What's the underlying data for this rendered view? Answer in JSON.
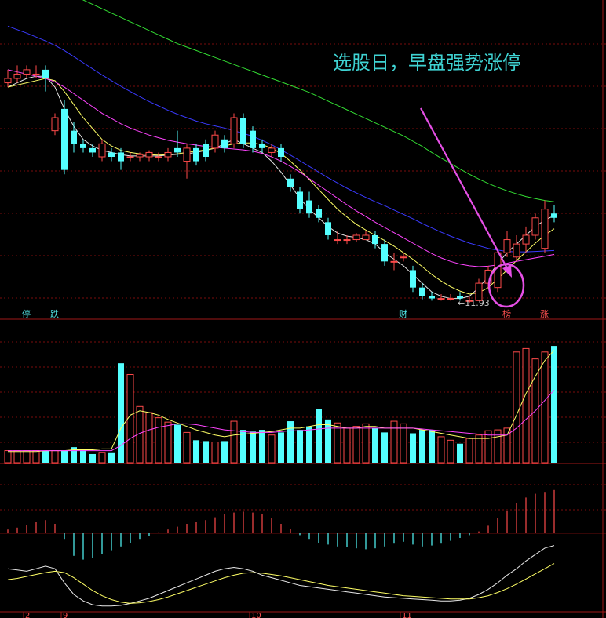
{
  "annotation": {
    "text": "选股日，早盘强势涨停",
    "color": "#3fd3d3"
  },
  "price_label": "←11.93",
  "events": [
    {
      "i": 2,
      "text": "停",
      "color": "#4fe0e0"
    },
    {
      "i": 5,
      "text": "跌",
      "color": "#4fe0e0"
    },
    {
      "i": 42,
      "text": "财",
      "color": "#4fe0e0"
    },
    {
      "i": 53,
      "text": "榜",
      "color": "#ff5050"
    },
    {
      "i": 57,
      "text": "涨",
      "color": "#ff5050"
    }
  ],
  "month_labels": [
    {
      "i": 2,
      "text": "2"
    },
    {
      "i": 6,
      "text": "9"
    },
    {
      "i": 26,
      "text": "10"
    },
    {
      "i": 42,
      "text": "11"
    }
  ],
  "colors": {
    "up": "#ff4a4a",
    "down": "#54ffff",
    "grid": "#7a0d0d",
    "ma_white": "#e8e8e8",
    "ma_yellow": "#ffff66",
    "ma_magenta": "#ff44ff",
    "ma_blue": "#3a3aff",
    "ma_green": "#33dd33",
    "arrow": "#e64fe6"
  },
  "chart_data": [
    {
      "type": "candlestick",
      "panel": "price",
      "x": [
        "d1",
        "d2",
        "d3",
        "d4",
        "d5",
        "d6",
        "d7",
        "d8",
        "d9",
        "d10",
        "d11",
        "d12",
        "d13",
        "d14",
        "d15",
        "d16",
        "d17",
        "d18",
        "d19",
        "d20",
        "d21",
        "d22",
        "d23",
        "d24",
        "d25",
        "d26",
        "d27",
        "d28",
        "d29",
        "d30",
        "d31",
        "d32",
        "d33",
        "d34",
        "d35",
        "d36",
        "d37",
        "d38",
        "d39",
        "d40",
        "d41",
        "d42",
        "d43",
        "d44",
        "d45",
        "d46",
        "d47",
        "d48",
        "d49",
        "d50",
        "d51",
        "d52",
        "d53",
        "d54",
        "d55",
        "d56",
        "d57",
        "d58",
        "d59"
      ],
      "open": [
        16.9,
        17.0,
        17.1,
        17.1,
        17.2,
        15.8,
        16.3,
        15.8,
        15.5,
        15.4,
        15.2,
        15.3,
        15.3,
        15.2,
        15.2,
        15.2,
        15.2,
        15.2,
        15.4,
        15.1,
        15.4,
        15.5,
        15.4,
        15.6,
        15.5,
        16.1,
        15.8,
        15.5,
        15.3,
        15.4,
        14.7,
        14.4,
        14.2,
        14.0,
        13.7,
        13.3,
        13.3,
        13.3,
        13.3,
        13.4,
        13.2,
        12.8,
        12.9,
        12.6,
        12.2,
        12.0,
        11.95,
        11.95,
        12.0,
        11.9,
        11.9,
        12.3,
        12.2,
        13.0,
        12.9,
        13.2,
        13.4,
        13.1,
        13.9
      ],
      "close": [
        17.0,
        17.1,
        17.2,
        17.1,
        17.0,
        16.1,
        14.9,
        15.5,
        15.4,
        15.3,
        15.5,
        15.2,
        15.1,
        15.2,
        15.25,
        15.3,
        15.2,
        15.3,
        15.3,
        15.4,
        15.1,
        15.2,
        15.7,
        15.4,
        16.1,
        15.5,
        15.4,
        15.4,
        15.4,
        15.2,
        14.5,
        14.0,
        13.9,
        13.8,
        13.4,
        13.3,
        13.3,
        13.4,
        13.4,
        13.2,
        12.8,
        12.8,
        12.9,
        12.2,
        12.0,
        11.95,
        11.95,
        11.95,
        11.95,
        11.9,
        12.3,
        12.6,
        13.0,
        13.3,
        13.2,
        13.4,
        13.8,
        14.0,
        13.8
      ],
      "high": [
        17.2,
        17.3,
        17.3,
        17.3,
        17.3,
        16.2,
        16.5,
        16.0,
        15.6,
        15.5,
        15.6,
        15.4,
        15.4,
        15.3,
        15.3,
        15.35,
        15.3,
        15.4,
        15.8,
        15.5,
        15.5,
        15.6,
        15.8,
        15.7,
        16.2,
        16.2,
        15.9,
        15.6,
        15.5,
        15.5,
        14.8,
        14.5,
        14.4,
        14.1,
        13.8,
        13.5,
        13.4,
        13.45,
        13.5,
        13.5,
        13.3,
        13.0,
        13.0,
        12.7,
        12.3,
        12.1,
        12.05,
        12.05,
        12.1,
        12.0,
        12.4,
        12.7,
        13.1,
        13.5,
        13.4,
        13.6,
        13.9,
        14.2,
        14.1
      ],
      "low": [
        16.8,
        16.9,
        17.0,
        17.0,
        16.7,
        15.7,
        14.8,
        15.3,
        15.3,
        15.2,
        15.1,
        15.1,
        14.9,
        15.1,
        15.1,
        15.1,
        15.1,
        15.1,
        15.2,
        14.7,
        15.0,
        15.1,
        15.3,
        15.3,
        15.4,
        15.4,
        15.3,
        15.3,
        15.2,
        15.1,
        14.4,
        13.9,
        13.8,
        13.7,
        13.3,
        13.2,
        13.2,
        13.25,
        13.3,
        13.1,
        12.7,
        12.6,
        12.8,
        12.1,
        11.93,
        11.9,
        11.9,
        11.9,
        11.9,
        11.85,
        11.9,
        12.2,
        12.1,
        12.9,
        12.8,
        13.0,
        13.3,
        13.0,
        13.7
      ],
      "ylim": [
        11.6,
        18.8
      ]
    },
    {
      "type": "line",
      "panel": "price",
      "series": [
        {
          "name": "",
          "color": "white",
          "values": [
            16.8,
            16.9,
            17.0,
            17.05,
            17.05,
            16.8,
            16.3,
            15.9,
            15.6,
            15.45,
            15.35,
            15.3,
            15.25,
            15.22,
            15.22,
            15.22,
            15.22,
            15.24,
            15.26,
            15.27,
            15.3,
            15.35,
            15.4,
            15.5,
            15.6,
            15.5,
            15.4,
            15.3,
            15.1,
            14.85,
            14.55,
            14.25,
            14.0,
            13.8,
            13.6,
            13.45,
            13.38,
            13.35,
            13.3,
            13.2,
            13.0,
            12.85,
            12.7,
            12.5,
            12.3,
            12.1,
            12.0,
            11.95,
            11.95,
            12.0,
            12.2,
            12.45,
            12.75,
            13.0,
            13.2,
            13.4,
            13.6,
            13.75,
            13.85
          ]
        },
        {
          "name": "",
          "color": "yellow",
          "values": [
            16.8,
            16.85,
            16.9,
            16.95,
            17.0,
            16.95,
            16.7,
            16.4,
            16.1,
            15.85,
            15.6,
            15.45,
            15.35,
            15.3,
            15.27,
            15.25,
            15.24,
            15.25,
            15.27,
            15.3,
            15.33,
            15.36,
            15.4,
            15.45,
            15.5,
            15.52,
            15.52,
            15.48,
            15.4,
            15.28,
            15.1,
            14.9,
            14.68,
            14.45,
            14.22,
            14.0,
            13.82,
            13.65,
            13.52,
            13.4,
            13.28,
            13.15,
            13.0,
            12.85,
            12.68,
            12.5,
            12.35,
            12.22,
            12.12,
            12.05,
            12.08,
            12.2,
            12.4,
            12.6,
            12.82,
            13.02,
            13.22,
            13.4,
            13.55
          ]
        },
        {
          "name": "",
          "color": "magenta",
          "values": [
            17.2,
            17.15,
            17.1,
            17.05,
            17.0,
            16.92,
            16.8,
            16.65,
            16.5,
            16.35,
            16.2,
            16.08,
            15.96,
            15.86,
            15.78,
            15.7,
            15.64,
            15.58,
            15.54,
            15.5,
            15.47,
            15.44,
            15.42,
            15.4,
            15.38,
            15.36,
            15.33,
            15.28,
            15.2,
            15.1,
            14.98,
            14.85,
            14.7,
            14.55,
            14.4,
            14.25,
            14.1,
            13.96,
            13.83,
            13.7,
            13.58,
            13.46,
            13.34,
            13.22,
            13.1,
            12.98,
            12.88,
            12.8,
            12.74,
            12.7,
            12.68,
            12.69,
            12.72,
            12.76,
            12.8,
            12.84,
            12.88,
            12.92,
            12.96
          ]
        },
        {
          "name": "",
          "color": "blue",
          "values": [
            18.2,
            18.12,
            18.04,
            17.95,
            17.86,
            17.76,
            17.64,
            17.5,
            17.36,
            17.22,
            17.08,
            16.95,
            16.82,
            16.7,
            16.58,
            16.47,
            16.37,
            16.27,
            16.18,
            16.1,
            16.02,
            15.96,
            15.91,
            15.86,
            15.8,
            15.74,
            15.67,
            15.58,
            15.48,
            15.36,
            15.24,
            15.11,
            14.98,
            14.85,
            14.72,
            14.6,
            14.48,
            14.37,
            14.27,
            14.17,
            14.08,
            13.98,
            13.88,
            13.78,
            13.67,
            13.57,
            13.47,
            13.38,
            13.3,
            13.22,
            13.16,
            13.1,
            13.06,
            13.03,
            13.02,
            13.02,
            13.03,
            13.04,
            13.05
          ]
        },
        {
          "name": "",
          "color": "green",
          "values": [
            19.6,
            19.5,
            19.4,
            19.3,
            19.2,
            19.1,
            19.0,
            18.9,
            18.8,
            18.7,
            18.6,
            18.5,
            18.4,
            18.3,
            18.2,
            18.1,
            18.0,
            17.9,
            17.8,
            17.72,
            17.64,
            17.56,
            17.48,
            17.4,
            17.32,
            17.24,
            17.16,
            17.08,
            17.0,
            16.92,
            16.84,
            16.76,
            16.68,
            16.58,
            16.48,
            16.38,
            16.28,
            16.18,
            16.08,
            15.98,
            15.88,
            15.78,
            15.68,
            15.56,
            15.44,
            15.3,
            15.17,
            15.05,
            14.92,
            14.8,
            14.69,
            14.59,
            14.5,
            14.42,
            14.35,
            14.29,
            14.24,
            14.2,
            14.17
          ]
        }
      ]
    },
    {
      "type": "bar",
      "panel": "volume",
      "values": [
        14,
        14,
        14,
        14,
        14,
        14,
        14,
        18,
        16,
        10,
        12,
        12,
        115,
        102,
        65,
        58,
        52,
        47,
        44,
        35,
        26,
        25,
        24,
        25,
        48,
        38,
        36,
        38,
        32,
        35,
        48,
        38,
        42,
        62,
        50,
        46,
        40,
        42,
        45,
        40,
        35,
        48,
        45,
        34,
        38,
        38,
        30,
        26,
        22,
        28,
        32,
        37,
        38,
        40,
        128,
        132,
        120,
        128,
        135
      ],
      "ylim": [
        0,
        165
      ],
      "up_color": "#ff4a4a",
      "down_color": "#54ffff"
    },
    {
      "type": "line",
      "panel": "volume",
      "series": [
        {
          "name": "",
          "color": "yellow",
          "values": [
            13,
            13,
            13,
            13,
            14,
            14,
            14,
            15,
            15,
            15,
            16,
            16,
            40,
            55,
            60,
            58,
            55,
            50,
            46,
            42,
            38,
            35,
            32,
            30,
            32,
            33,
            34,
            35,
            36,
            38,
            40,
            40,
            42,
            44,
            44,
            42,
            40,
            40,
            42,
            42,
            40,
            40,
            40,
            40,
            38,
            36,
            34,
            32,
            30,
            28,
            28,
            28,
            30,
            32,
            55,
            80,
            100,
            118,
            130
          ]
        },
        {
          "name": "",
          "color": "magenta",
          "values": [
            14,
            14,
            14,
            14,
            14,
            14,
            14,
            14,
            14,
            14,
            14,
            14,
            20,
            28,
            34,
            38,
            41,
            43,
            45,
            45,
            44,
            42,
            40,
            38,
            37,
            36,
            35,
            35,
            35,
            36,
            37,
            37,
            38,
            39,
            40,
            40,
            40,
            40,
            40,
            40,
            40,
            40,
            40,
            40,
            39,
            38,
            37,
            36,
            35,
            34,
            33,
            32,
            32,
            32,
            40,
            50,
            60,
            72,
            84
          ]
        }
      ]
    },
    {
      "type": "bar",
      "panel": "macd",
      "values": [
        0.2,
        0.3,
        0.45,
        0.6,
        0.7,
        0.5,
        -0.3,
        -1.2,
        -1.4,
        -1.3,
        -1.1,
        -0.9,
        -0.7,
        -0.5,
        -0.3,
        -0.15,
        0.05,
        0.2,
        0.35,
        0.5,
        0.6,
        0.7,
        0.85,
        1.0,
        1.1,
        1.15,
        1.1,
        1.0,
        0.8,
        0.5,
        0.25,
        -0.1,
        -0.3,
        -0.5,
        -0.6,
        -0.7,
        -0.75,
        -0.8,
        -0.85,
        -0.8,
        -0.7,
        -0.55,
        -0.45,
        -0.6,
        -0.7,
        -0.65,
        -0.55,
        -0.4,
        -0.25,
        -0.1,
        0.1,
        0.4,
        0.8,
        1.2,
        1.6,
        1.9,
        2.1,
        2.2,
        2.3
      ],
      "ylim": [
        -2.0,
        3.4
      ],
      "up_color": "#ff4a4a",
      "down_color": "#54ffff"
    },
    {
      "type": "line",
      "panel": "oscillator",
      "series": [
        {
          "name": "",
          "color": "white",
          "values": [
            62,
            60,
            58,
            62,
            66,
            62,
            40,
            22,
            12,
            6,
            4,
            4,
            5,
            8,
            12,
            16,
            22,
            28,
            34,
            40,
            46,
            52,
            58,
            62,
            64,
            62,
            58,
            52,
            48,
            44,
            40,
            36,
            34,
            32,
            30,
            28,
            26,
            24,
            22,
            20,
            18,
            17,
            16,
            15,
            14,
            13,
            12,
            12,
            13,
            16,
            22,
            30,
            40,
            52,
            62,
            74,
            84,
            94,
            98
          ]
        },
        {
          "name": "",
          "color": "yellow",
          "values": [
            45,
            47,
            50,
            53,
            56,
            58,
            56,
            48,
            38,
            28,
            20,
            14,
            10,
            8,
            9,
            11,
            14,
            18,
            23,
            28,
            33,
            38,
            43,
            48,
            52,
            55,
            56,
            55,
            53,
            51,
            48,
            45,
            42,
            39,
            36,
            34,
            32,
            30,
            28,
            26,
            24,
            22,
            20,
            19,
            18,
            17,
            16,
            15,
            15,
            15,
            17,
            20,
            25,
            31,
            38,
            46,
            54,
            62,
            70
          ]
        }
      ]
    }
  ]
}
